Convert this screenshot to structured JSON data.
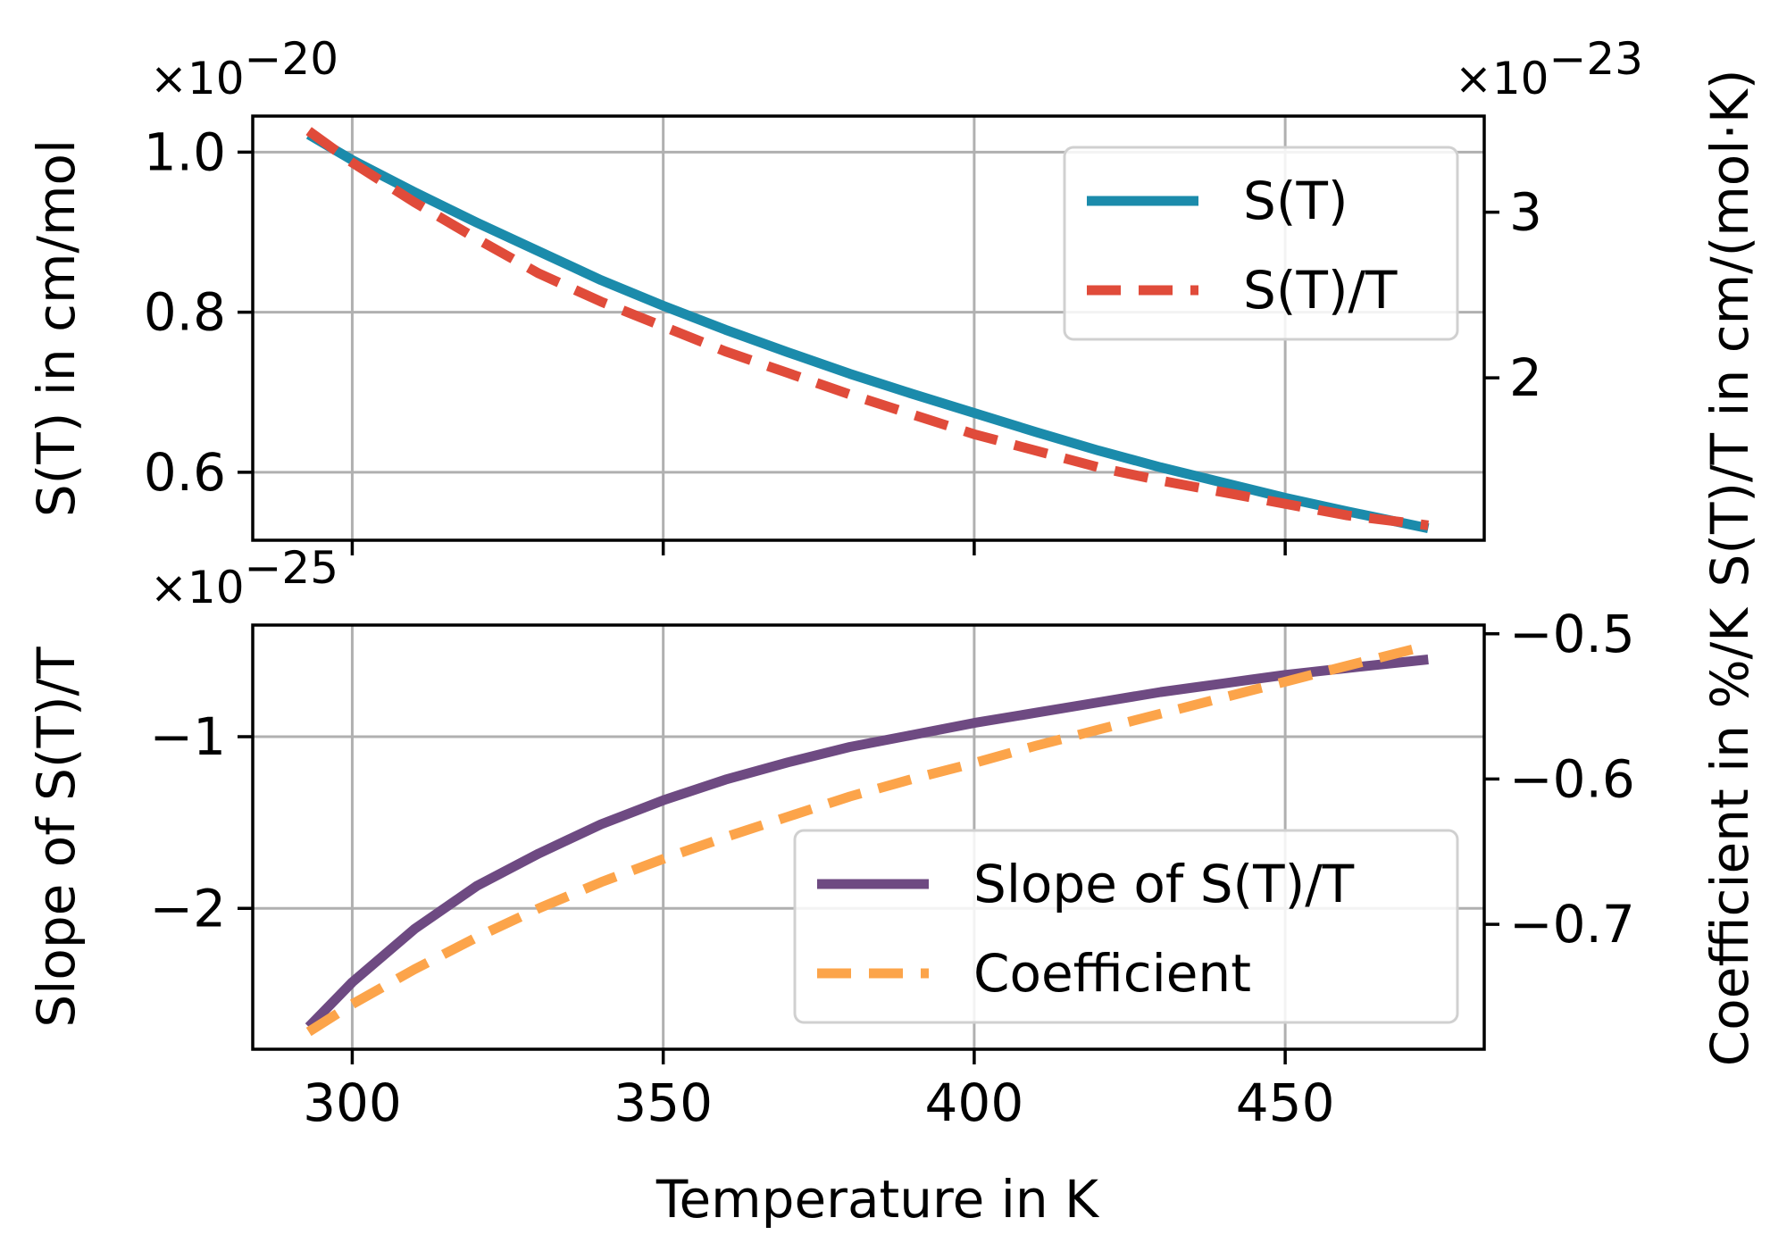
{
  "chart_data": [
    {
      "type": "line",
      "panel": "top",
      "xlabel": "",
      "xlim": [
        284,
        482
      ],
      "xticks": [
        300,
        350,
        400,
        450
      ],
      "show_x_tick_labels": false,
      "left_axis": {
        "label": "S(T) in cm/mol",
        "multiplier": "×10−20",
        "ylim": [
          0.515,
          1.045
        ],
        "ticks": [
          0.6,
          0.8,
          1.0
        ],
        "tick_labels": [
          "0.6",
          "0.8",
          "1.0"
        ]
      },
      "right_axis": {
        "label": "S(T)/T in cm/(mol·K)",
        "multiplier": "×10−23",
        "ylim": [
          1.02,
          3.58
        ],
        "ticks": [
          2,
          3
        ],
        "tick_labels": [
          "2",
          "3"
        ]
      },
      "grid": true,
      "legend_position": "upper-right",
      "series": [
        {
          "name": "S(T)",
          "axis": "left",
          "color": "#1b8bab",
          "style": "solid",
          "x": [
            293,
            300,
            310,
            320,
            330,
            340,
            350,
            360,
            370,
            380,
            390,
            400,
            410,
            420,
            430,
            440,
            450,
            460,
            473
          ],
          "y": [
            1.022,
            0.99,
            0.95,
            0.912,
            0.876,
            0.84,
            0.808,
            0.778,
            0.75,
            0.723,
            0.698,
            0.674,
            0.65,
            0.627,
            0.606,
            0.587,
            0.568,
            0.551,
            0.53
          ]
        },
        {
          "name": "S(T)/T",
          "axis": "right",
          "color": "#e04b3a",
          "style": "dashed",
          "x": [
            293,
            300,
            310,
            320,
            330,
            340,
            350,
            360,
            370,
            380,
            390,
            400,
            410,
            420,
            430,
            440,
            450,
            460,
            473
          ],
          "y": [
            3.49,
            3.3,
            3.06,
            2.84,
            2.63,
            2.46,
            2.31,
            2.16,
            2.03,
            1.9,
            1.78,
            1.66,
            1.56,
            1.46,
            1.38,
            1.31,
            1.24,
            1.17,
            1.11
          ]
        }
      ]
    },
    {
      "type": "line",
      "panel": "bottom",
      "xlabel": "Temperature in K",
      "xlim": [
        284,
        482
      ],
      "xticks": [
        300,
        350,
        400,
        450
      ],
      "xtick_labels": [
        "300",
        "350",
        "400",
        "450"
      ],
      "left_axis": {
        "label": "Slope of S(T)/T",
        "multiplier": "×10−25",
        "ylim": [
          -2.82,
          -0.35
        ],
        "ticks": [
          -2,
          -1
        ],
        "tick_labels": [
          "−2",
          "−1"
        ]
      },
      "right_axis": {
        "label": "Coefficient in %/K",
        "ylim": [
          -0.786,
          -0.494
        ],
        "ticks": [
          -0.7,
          -0.6,
          -0.5
        ],
        "tick_labels": [
          "−0.7",
          "−0.6",
          "−0.5"
        ]
      },
      "grid": true,
      "legend_position": "lower-right",
      "series": [
        {
          "name": "Slope of S(T)/T",
          "axis": "left",
          "color": "#6e4a82",
          "style": "solid",
          "x": [
            293,
            300,
            310,
            320,
            330,
            340,
            350,
            360,
            370,
            380,
            390,
            400,
            410,
            420,
            430,
            440,
            450,
            460,
            473
          ],
          "y": [
            -2.69,
            -2.43,
            -2.12,
            -1.87,
            -1.68,
            -1.51,
            -1.37,
            -1.25,
            -1.15,
            -1.06,
            -0.99,
            -0.92,
            -0.86,
            -0.8,
            -0.74,
            -0.69,
            -0.64,
            -0.6,
            -0.55
          ]
        },
        {
          "name": "Coefficient",
          "axis": "right",
          "color": "#fca44a",
          "style": "dashed",
          "x": [
            293,
            300,
            310,
            320,
            330,
            340,
            350,
            360,
            370,
            380,
            390,
            400,
            410,
            420,
            430,
            440,
            450,
            460,
            473
          ],
          "y": [
            -0.774,
            -0.755,
            -0.731,
            -0.709,
            -0.689,
            -0.671,
            -0.655,
            -0.64,
            -0.626,
            -0.612,
            -0.6,
            -0.589,
            -0.577,
            -0.566,
            -0.555,
            -0.544,
            -0.533,
            -0.522,
            -0.508
          ]
        }
      ]
    }
  ]
}
